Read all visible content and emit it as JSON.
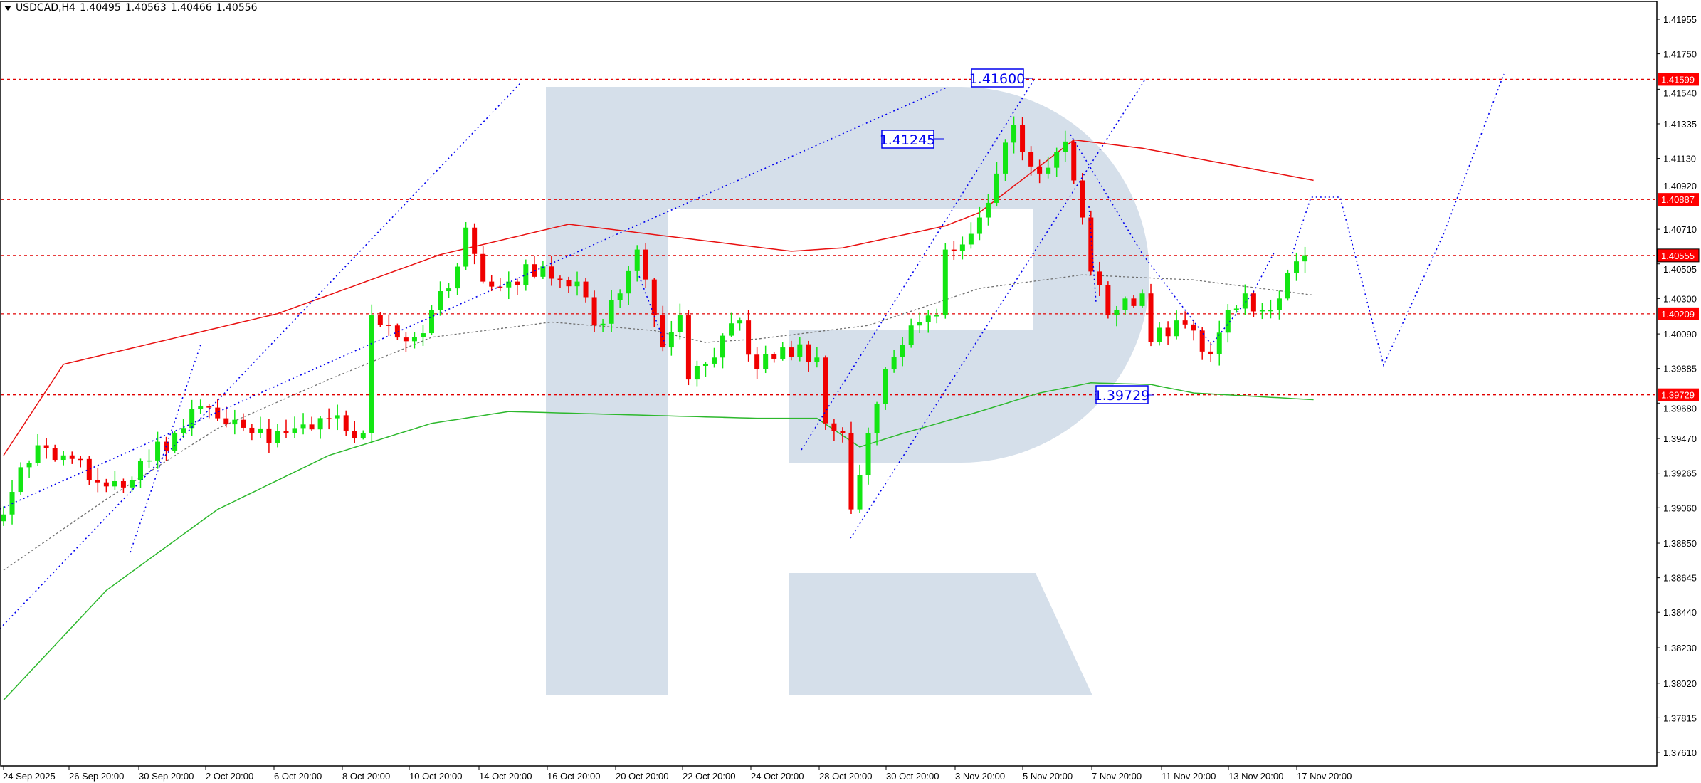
{
  "header": {
    "symbol_timeframe": "USDCAD,H4",
    "open": "1.40495",
    "high": "1.40563",
    "low": "1.40466",
    "close": "1.40556"
  },
  "colors": {
    "bull": "#13e613",
    "bear": "#f00000",
    "ma_slow": "#e81010",
    "ma_long": "#2db82d",
    "ma_mid": "#707070",
    "level_line": "#e00000",
    "level_label_bg": "#ff0000",
    "forecast": "#0000ee",
    "watermark": "#d5dfea"
  },
  "annotations": {
    "target_top": "1.41600",
    "level_mid": "1.41245",
    "target_low": "1.39729"
  },
  "chart_data": {
    "type": "candlestick",
    "symbol": "USDCAD",
    "timeframe": "H4",
    "bars": 153,
    "close_path": [
      [
        0,
        1.3902
      ],
      [
        2,
        1.393
      ],
      [
        4,
        1.3943
      ],
      [
        7,
        1.3937
      ],
      [
        11,
        1.3921
      ],
      [
        14,
        1.3918
      ],
      [
        17,
        1.3934
      ],
      [
        20,
        1.395
      ],
      [
        23,
        1.3966
      ],
      [
        25,
        1.3959
      ],
      [
        29,
        1.395
      ],
      [
        33,
        1.395
      ],
      [
        38,
        1.3959
      ],
      [
        42,
        1.395
      ],
      [
        43,
        1.402
      ],
      [
        45,
        1.4014
      ],
      [
        48,
        1.4007
      ],
      [
        52,
        1.4036
      ],
      [
        54,
        1.4072
      ],
      [
        56,
        1.404
      ],
      [
        59,
        1.404
      ],
      [
        63,
        1.4049
      ],
      [
        67,
        1.404
      ],
      [
        69,
        1.4014
      ],
      [
        72,
        1.4033
      ],
      [
        74,
        1.4059
      ],
      [
        76,
        1.402
      ],
      [
        77,
        1.4001
      ],
      [
        79,
        1.402
      ],
      [
        80,
        1.3982
      ],
      [
        83,
        1.3995
      ],
      [
        86,
        1.4017
      ],
      [
        88,
        1.3988
      ],
      [
        91,
        1.4001
      ],
      [
        95,
        1.3995
      ],
      [
        96,
        1.3956
      ],
      [
        98,
        1.395
      ],
      [
        99,
        1.3905
      ],
      [
        101,
        1.395
      ],
      [
        103,
        1.3988
      ],
      [
        106,
        1.4014
      ],
      [
        109,
        1.402
      ],
      [
        110,
        1.4059
      ],
      [
        112,
        1.4062
      ],
      [
        114,
        1.4078
      ],
      [
        116,
        1.4104
      ],
      [
        118,
        1.4133
      ],
      [
        119,
        1.4117
      ],
      [
        121,
        1.4104
      ],
      [
        123,
        1.4117
      ],
      [
        124,
        1.4123
      ],
      [
        126,
        1.4078
      ],
      [
        127,
        1.4046
      ],
      [
        129,
        1.402
      ],
      [
        131,
        1.403
      ],
      [
        133,
        1.4033
      ],
      [
        134,
        1.4004
      ],
      [
        137,
        1.4017
      ],
      [
        139,
        1.4011
      ],
      [
        141,
        1.3997
      ],
      [
        143,
        1.4023
      ],
      [
        145,
        1.4033
      ],
      [
        147,
        1.4023
      ],
      [
        149,
        1.403
      ],
      [
        151,
        1.4052
      ],
      [
        152,
        1.40556
      ]
    ],
    "moving_averages": [
      {
        "style": "solid-red",
        "points": [
          [
            0,
            1.3937
          ],
          [
            7,
            1.3991
          ],
          [
            32,
            1.4021
          ],
          [
            51,
            1.4056
          ],
          [
            66,
            1.4074
          ],
          [
            92,
            1.4058
          ],
          [
            98,
            1.406
          ],
          [
            110,
            1.4073
          ],
          [
            114,
            1.4081
          ],
          [
            125,
            1.4124
          ],
          [
            133,
            1.4119
          ],
          [
            153,
            1.41
          ]
        ]
      },
      {
        "style": "solid-green",
        "points": [
          [
            0,
            1.3792
          ],
          [
            12,
            1.3857
          ],
          [
            25,
            1.3905
          ],
          [
            38,
            1.3937
          ],
          [
            50,
            1.3956
          ],
          [
            59,
            1.3963
          ],
          [
            88,
            1.3959
          ],
          [
            95,
            1.3959
          ],
          [
            100,
            1.3942
          ],
          [
            105,
            1.395
          ],
          [
            114,
            1.3963
          ],
          [
            121,
            1.3974
          ],
          [
            127,
            1.398
          ],
          [
            134,
            1.3979
          ],
          [
            139,
            1.3974
          ],
          [
            153,
            1.397
          ]
        ]
      },
      {
        "style": "dotted-gray",
        "points": [
          [
            0,
            1.3869
          ],
          [
            12,
            1.3911
          ],
          [
            25,
            1.3953
          ],
          [
            38,
            1.3982
          ],
          [
            50,
            1.4007
          ],
          [
            64,
            1.4016
          ],
          [
            76,
            1.4011
          ],
          [
            82,
            1.4004
          ],
          [
            88,
            1.4006
          ],
          [
            101,
            1.4014
          ],
          [
            114,
            1.4036
          ],
          [
            126,
            1.4044
          ],
          [
            139,
            1.4041
          ],
          [
            153,
            1.4032
          ]
        ]
      }
    ],
    "levels": [
      "1.41599",
      "1.40887",
      "1.40555",
      "1.40209",
      "1.39729"
    ],
    "current_price": "1.40555",
    "y_ticks": [
      "1.41955",
      "1.41750",
      "1.41540",
      "1.41335",
      "1.41130",
      "1.40920",
      "1.40710",
      "1.40505",
      "1.40300",
      "1.40090",
      "1.39885",
      "1.39680",
      "1.39470",
      "1.39265",
      "1.39060",
      "1.38850",
      "1.38645",
      "1.38440",
      "1.38230",
      "1.38020",
      "1.37815",
      "1.37610"
    ],
    "x_ticks": [
      "24 Sep 2025",
      "26 Sep 20:00",
      "30 Sep 20:00",
      "2 Oct 20:00",
      "6 Oct 20:00",
      "8 Oct 20:00",
      "10 Oct 20:00",
      "14 Oct 20:00",
      "16 Oct 20:00",
      "20 Oct 20:00",
      "22 Oct 20:00",
      "24 Oct 20:00",
      "28 Oct 20:00",
      "30 Oct 20:00",
      "3 Nov 20:00",
      "5 Nov 20:00",
      "7 Nov 20:00",
      "11 Nov 20:00",
      "13 Nov 20:00",
      "17 Nov 20:00"
    ],
    "ylim": [
      1.3745,
      1.421
    ],
    "grid": false
  }
}
